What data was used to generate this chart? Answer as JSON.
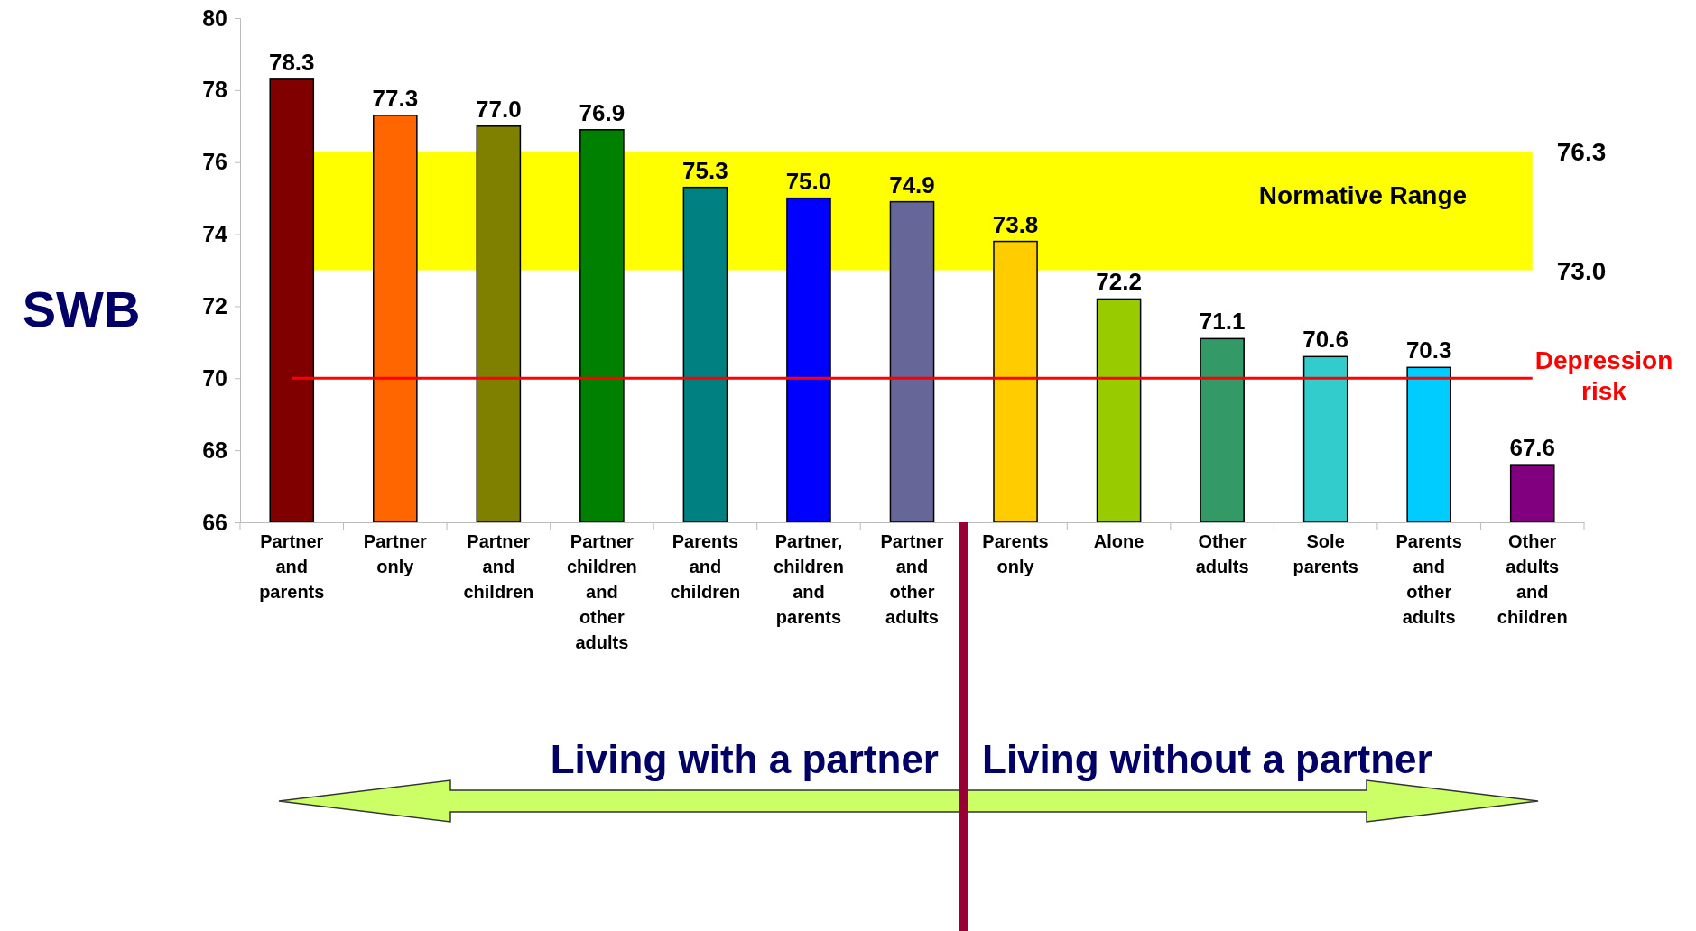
{
  "chart_data": {
    "type": "bar",
    "ylabel": "SWB",
    "categories": [
      "Partner and parents",
      "Partner only",
      "Partner and children",
      "Partner children and other adults",
      "Parents and children",
      "Partner, children and parents",
      "Partner and other adults",
      "Parents only",
      "Alone",
      "Other adults",
      "Sole parents",
      "Parents and other adults",
      "Other adults and children"
    ],
    "values": [
      78.3,
      77.3,
      77.0,
      76.9,
      75.3,
      75.0,
      74.9,
      73.8,
      72.2,
      71.1,
      70.6,
      70.3,
      67.6
    ],
    "value_labels": [
      "78.3",
      "77.3",
      "77.0",
      "76.9",
      "75.3",
      "75.0",
      "74.9",
      "73.8",
      "72.2",
      "71.1",
      "70.6",
      "70.3",
      "67.6"
    ],
    "colors": [
      "#800000",
      "#ff6600",
      "#808000",
      "#008000",
      "#008080",
      "#0000ff",
      "#666699",
      "#ffcc00",
      "#99cc00",
      "#339966",
      "#33cccc",
      "#00ccff",
      "#800080"
    ],
    "ylim": [
      66,
      80
    ],
    "yticks": [
      66,
      68,
      70,
      72,
      74,
      76,
      78,
      80
    ],
    "grid": false,
    "bands": [
      {
        "axis": "y",
        "from": 73.0,
        "to": 76.3,
        "label": "Normative Range",
        "color": "#ffff00"
      }
    ],
    "ref_lines": [
      {
        "axis": "y",
        "value": 70,
        "label": "Depression risk",
        "color": "#ff0000"
      }
    ],
    "annotations": [
      "76.3",
      "73.0",
      "Living with a partner",
      "Living without a partner"
    ]
  }
}
